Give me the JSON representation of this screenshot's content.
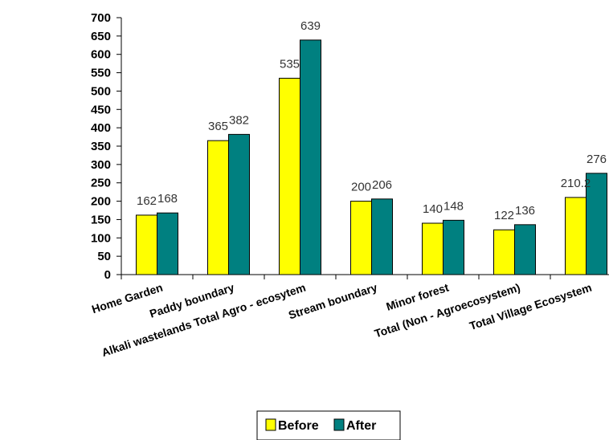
{
  "chart_data": {
    "type": "bar",
    "categories": [
      "Home Garden",
      "Paddy boundary",
      "Alkali wastelands Total Agro - ecosytem",
      "Stream boundary",
      "Minor forest",
      "Total (Non - Agroecosystem)",
      "Total Village Ecosystem"
    ],
    "series": [
      {
        "name": "Before",
        "values": [
          162,
          365,
          535,
          200,
          140,
          122,
          210.2
        ],
        "labels": [
          "162",
          "365",
          "535",
          "200",
          "140",
          "122",
          "210.2"
        ],
        "color": "#ffff00"
      },
      {
        "name": "After",
        "values": [
          168,
          382,
          639,
          206,
          148,
          136,
          276
        ],
        "labels": [
          "168",
          "382",
          "639",
          "206",
          "148",
          "136",
          "276"
        ],
        "color": "#008080"
      }
    ],
    "ylim": [
      0,
      700
    ],
    "yticks": [
      "0",
      "50",
      "100",
      "150",
      "200",
      "250",
      "300",
      "350",
      "400",
      "450",
      "500",
      "550",
      "600",
      "650",
      "700"
    ],
    "grid": false,
    "legend_position": "bottom"
  }
}
